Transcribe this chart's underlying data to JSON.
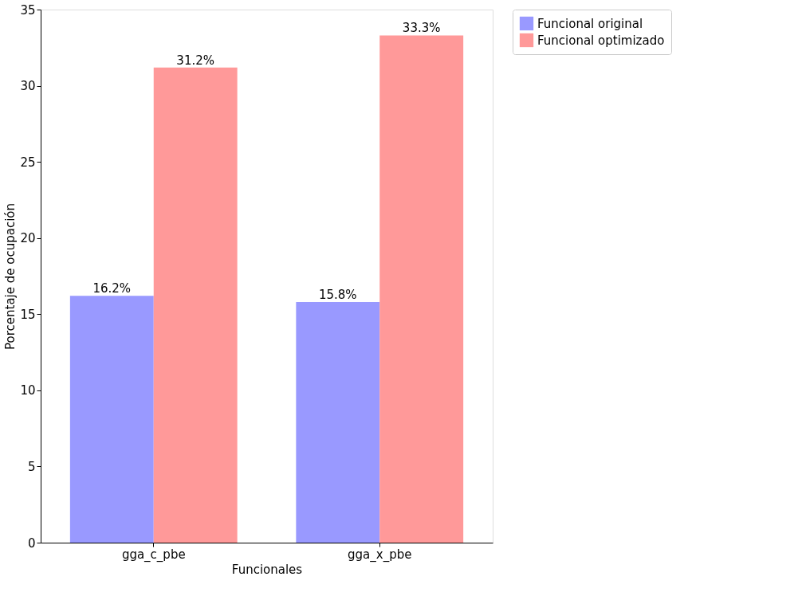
{
  "chart_data": {
    "type": "bar",
    "xlabel": "Funcionales",
    "ylabel": "Porcentaje de ocupación",
    "categories": [
      "gga_c_pbe",
      "gga_x_pbe"
    ],
    "series": [
      {
        "name": "Funcional original",
        "color": "#9999ff",
        "values": [
          16.2,
          15.8
        ],
        "value_labels": [
          "16.2%",
          "15.8%"
        ]
      },
      {
        "name": "Funcional optimizado",
        "color": "#ff9999",
        "values": [
          31.2,
          33.3
        ],
        "value_labels": [
          "31.2%",
          "33.3%"
        ]
      }
    ],
    "ylim": [
      0,
      35
    ],
    "yticks": [
      0,
      5,
      10,
      15,
      20,
      25,
      30,
      35
    ],
    "grid": false,
    "legend": "top right"
  }
}
